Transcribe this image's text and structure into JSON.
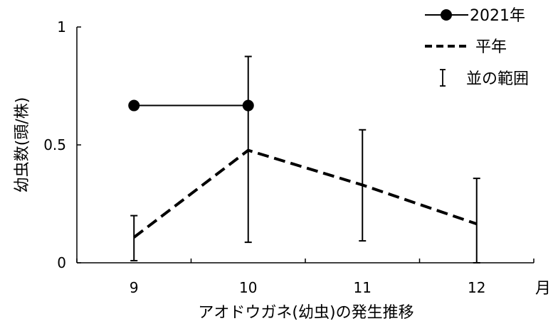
{
  "chart_data": {
    "type": "line",
    "categories": [
      "9",
      "10",
      "11",
      "12"
    ],
    "xlabel": "アオドウガネ(幼虫)の発生推移",
    "x_unit": "月",
    "ylabel": "幼虫数(頭/株)",
    "ylim": [
      0,
      1
    ],
    "yticks": [
      "0",
      "0.5",
      "1"
    ],
    "grid": false,
    "legend_position": "top-right",
    "series": [
      {
        "name": "2021年",
        "style": "solid-line-circle-markers",
        "color": "#000000",
        "values": [
          0.667,
          0.667,
          null,
          null
        ]
      },
      {
        "name": "平年",
        "style": "dashed-line",
        "color": "#000000",
        "values": [
          0.108,
          0.477,
          0.33,
          0.165
        ]
      }
    ],
    "error_bars": {
      "name": "並の範囲",
      "low": [
        0.009,
        0.087,
        0.093,
        0.0
      ],
      "high": [
        0.2,
        0.875,
        0.564,
        0.358
      ]
    }
  }
}
